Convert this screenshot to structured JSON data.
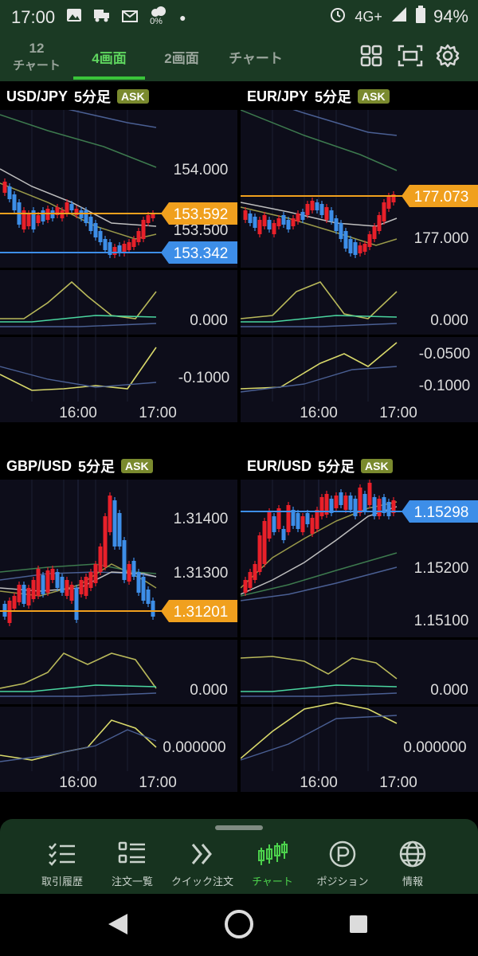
{
  "status_bar": {
    "time": "17:00",
    "pct_small": "0%",
    "network": "4G+",
    "battery": "94%"
  },
  "top_tabs": [
    {
      "line1": "12",
      "line2": "チャート"
    },
    {
      "label": "4画面"
    },
    {
      "label": "2画面"
    },
    {
      "label": "チャート"
    }
  ],
  "panels": [
    {
      "pair": "USD/JPY",
      "tf": "5分足",
      "ask": "ASK",
      "price_labels": [
        "154.000",
        "153.500"
      ],
      "ind1_label": "0.000",
      "ind2_label": "-0.1000",
      "badges": [
        {
          "value": "153.592",
          "color": "#f0a01e"
        },
        {
          "value": "153.342",
          "color": "#3d8ee8"
        }
      ],
      "time_labels": [
        "16:00",
        "17:00"
      ]
    },
    {
      "pair": "EUR/JPY",
      "tf": "5分足",
      "ask": "ASK",
      "price_labels": [
        "177.000"
      ],
      "ind1_label": "0.000",
      "ind2_labels": [
        "-0.0500",
        "-0.1000"
      ],
      "badges": [
        {
          "value": "177.073",
          "color": "#f0a01e"
        }
      ],
      "time_labels": [
        "16:00",
        "17:00"
      ]
    },
    {
      "pair": "GBP/USD",
      "tf": "5分足",
      "ask": "ASK",
      "price_labels": [
        "1.31400",
        "1.31300"
      ],
      "ind1_label": "0.000",
      "ind2_label": "0.000000",
      "badges": [
        {
          "value": "1.31201",
          "color": "#f0a01e"
        }
      ],
      "time_labels": [
        "16:00",
        "17:00"
      ]
    },
    {
      "pair": "EUR/USD",
      "tf": "5分足",
      "ask": "ASK",
      "price_labels": [
        "1.15200",
        "1.15100"
      ],
      "ind1_label": "0.000",
      "ind2_label": "0.000000",
      "badges": [
        {
          "value": "1.15298",
          "color": "#3d8ee8"
        }
      ],
      "time_labels": [
        "16:00",
        "17:00"
      ]
    }
  ],
  "bottom_nav": [
    {
      "label": "取引履歴",
      "icon": "checklist-icon"
    },
    {
      "label": "注文一覧",
      "icon": "list-icon"
    },
    {
      "label": "クイック注文",
      "icon": "double-chevron-icon"
    },
    {
      "label": "チャート",
      "icon": "candlestick-icon"
    },
    {
      "label": "ポジション",
      "icon": "position-icon"
    },
    {
      "label": "情報",
      "icon": "globe-icon"
    }
  ],
  "colors": {
    "accent_green": "#4cd24c",
    "bar_green": "#17331f",
    "up_candle": "#e8202a",
    "down_candle": "#3d8ee8",
    "ask_badge": "#7a8a2e"
  }
}
